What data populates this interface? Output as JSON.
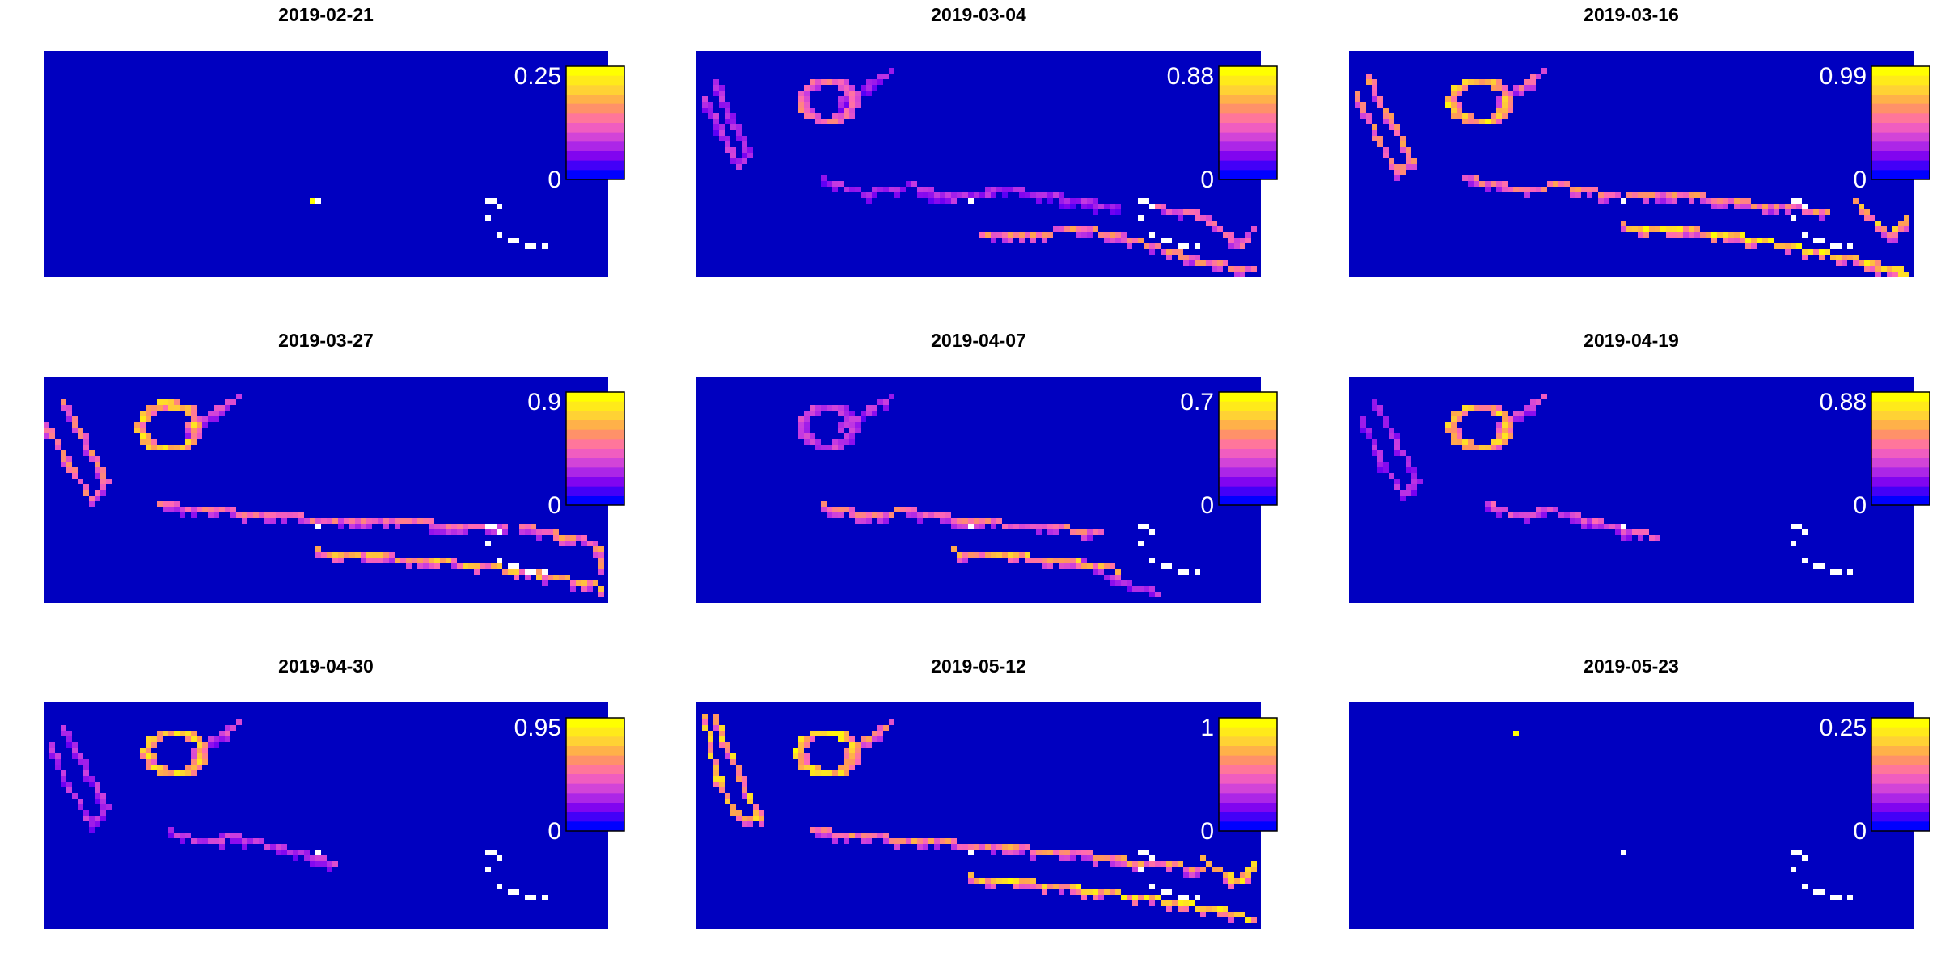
{
  "figure": {
    "background_color": "#ffffff",
    "map_background_color": "#0000c0"
  },
  "colormap": {
    "name": "blue-purple-pink-yellow",
    "stops": [
      "#0000ff",
      "#7a00f2",
      "#c83ce0",
      "#ff69b4",
      "#ff9a58",
      "#ffd830",
      "#ffff00"
    ],
    "missing_color": "#ffffff"
  },
  "chart_data": [
    {
      "type": "heatmap",
      "title": "2019-02-21",
      "legend": {
        "min_label": "0",
        "max_label": "0.25",
        "min": 0,
        "max": 0.25,
        "placement": "top-right"
      },
      "features": [
        {
          "kind": "point",
          "x": 0.478,
          "y": 0.66,
          "value": 0.25
        }
      ]
    },
    {
      "type": "heatmap",
      "title": "2019-03-04",
      "legend": {
        "min_label": "0",
        "max_label": "0.88",
        "min": 0,
        "max": 0.88,
        "placement": "top-right"
      },
      "features": [
        {
          "kind": "line",
          "points": [
            [
              0.01,
              0.2
            ],
            [
              0.04,
              0.35
            ],
            [
              0.07,
              0.5
            ],
            [
              0.09,
              0.45
            ],
            [
              0.06,
              0.3
            ],
            [
              0.03,
              0.12
            ]
          ],
          "value": 0.32
        },
        {
          "kind": "ellipse",
          "cx": 0.225,
          "cy": 0.21,
          "rx": 0.045,
          "ry": 0.085,
          "value": 0.55
        },
        {
          "kind": "line",
          "points": [
            [
              0.25,
              0.22
            ],
            [
              0.34,
              0.08
            ]
          ],
          "value": 0.3
        },
        {
          "kind": "line",
          "points": [
            [
              0.22,
              0.56
            ],
            [
              0.3,
              0.62
            ],
            [
              0.38,
              0.58
            ],
            [
              0.45,
              0.64
            ],
            [
              0.55,
              0.6
            ],
            [
              0.65,
              0.64
            ],
            [
              0.75,
              0.68
            ]
          ],
          "value": 0.3
        },
        {
          "kind": "line",
          "points": [
            [
              0.5,
              0.8
            ],
            [
              0.6,
              0.79
            ],
            [
              0.7,
              0.78
            ],
            [
              0.8,
              0.84
            ],
            [
              0.9,
              0.92
            ],
            [
              1.0,
              0.96
            ]
          ],
          "value": 0.62
        },
        {
          "kind": "line",
          "points": [
            [
              0.82,
              0.68
            ],
            [
              0.9,
              0.72
            ],
            [
              0.97,
              0.85
            ],
            [
              1.0,
              0.74
            ]
          ],
          "value": 0.5
        }
      ]
    },
    {
      "type": "heatmap",
      "title": "2019-03-16",
      "legend": {
        "min_label": "0",
        "max_label": "0.99",
        "min": 0,
        "max": 0.99,
        "placement": "top-right"
      },
      "features": [
        {
          "kind": "line",
          "points": [
            [
              0.01,
              0.18
            ],
            [
              0.04,
              0.35
            ],
            [
              0.08,
              0.53
            ],
            [
              0.11,
              0.47
            ],
            [
              0.07,
              0.3
            ],
            [
              0.03,
              0.1
            ]
          ],
          "value": 0.7
        },
        {
          "kind": "ellipse",
          "cx": 0.225,
          "cy": 0.21,
          "rx": 0.05,
          "ry": 0.09,
          "value": 0.95
        },
        {
          "kind": "line",
          "points": [
            [
              0.26,
              0.22
            ],
            [
              0.34,
              0.08
            ]
          ],
          "value": 0.6
        },
        {
          "kind": "line",
          "points": [
            [
              0.2,
              0.55
            ],
            [
              0.3,
              0.6
            ],
            [
              0.38,
              0.58
            ],
            [
              0.48,
              0.64
            ],
            [
              0.58,
              0.62
            ],
            [
              0.7,
              0.66
            ],
            [
              0.85,
              0.7
            ]
          ],
          "value": 0.7
        },
        {
          "kind": "line",
          "points": [
            [
              0.48,
              0.76
            ],
            [
              0.6,
              0.78
            ],
            [
              0.72,
              0.82
            ],
            [
              0.84,
              0.88
            ],
            [
              0.92,
              0.92
            ],
            [
              1.0,
              0.98
            ]
          ],
          "value": 0.99
        },
        {
          "kind": "line",
          "points": [
            [
              0.9,
              0.66
            ],
            [
              0.96,
              0.8
            ],
            [
              1.0,
              0.72
            ]
          ],
          "value": 0.85
        }
      ]
    },
    {
      "type": "heatmap",
      "title": "2019-03-27",
      "legend": {
        "min_label": "0",
        "max_label": "0.9",
        "min": 0,
        "max": 0.9,
        "placement": "top-right"
      },
      "features": [
        {
          "kind": "line",
          "points": [
            [
              0.0,
              0.2
            ],
            [
              0.04,
              0.38
            ],
            [
              0.08,
              0.52
            ],
            [
              0.11,
              0.46
            ],
            [
              0.07,
              0.28
            ],
            [
              0.03,
              0.1
            ]
          ],
          "value": 0.6
        },
        {
          "kind": "ellipse",
          "cx": 0.215,
          "cy": 0.21,
          "rx": 0.05,
          "ry": 0.1,
          "value": 0.85
        },
        {
          "kind": "line",
          "points": [
            [
              0.25,
              0.22
            ],
            [
              0.34,
              0.08
            ]
          ],
          "value": 0.5
        },
        {
          "kind": "line",
          "points": [
            [
              0.2,
              0.55
            ],
            [
              0.3,
              0.58
            ],
            [
              0.4,
              0.6
            ],
            [
              0.5,
              0.62
            ],
            [
              0.6,
              0.62
            ],
            [
              0.7,
              0.64
            ],
            [
              0.82,
              0.66
            ]
          ],
          "value": 0.55
        },
        {
          "kind": "line",
          "points": [
            [
              0.48,
              0.76
            ],
            [
              0.58,
              0.78
            ],
            [
              0.7,
              0.8
            ],
            [
              0.82,
              0.84
            ],
            [
              0.92,
              0.88
            ],
            [
              1.0,
              0.92
            ]
          ],
          "value": 0.75
        },
        {
          "kind": "line",
          "points": [
            [
              0.85,
              0.64
            ],
            [
              0.92,
              0.7
            ],
            [
              0.98,
              0.72
            ],
            [
              1.0,
              0.85
            ]
          ],
          "value": 0.65
        }
      ]
    },
    {
      "type": "heatmap",
      "title": "2019-04-07",
      "legend": {
        "min_label": "0",
        "max_label": "0.7",
        "min": 0,
        "max": 0.7,
        "placement": "top-right"
      },
      "features": [
        {
          "kind": "ellipse",
          "cx": 0.225,
          "cy": 0.21,
          "rx": 0.045,
          "ry": 0.085,
          "value": 0.3
        },
        {
          "kind": "line",
          "points": [
            [
              0.25,
              0.22
            ],
            [
              0.34,
              0.08
            ]
          ],
          "value": 0.25
        },
        {
          "kind": "line",
          "points": [
            [
              0.22,
              0.56
            ],
            [
              0.3,
              0.6
            ],
            [
              0.38,
              0.58
            ],
            [
              0.46,
              0.62
            ],
            [
              0.55,
              0.64
            ],
            [
              0.65,
              0.66
            ],
            [
              0.72,
              0.68
            ]
          ],
          "value": 0.45
        },
        {
          "kind": "line",
          "points": [
            [
              0.45,
              0.76
            ],
            [
              0.55,
              0.78
            ],
            [
              0.65,
              0.8
            ],
            [
              0.75,
              0.84
            ]
          ],
          "value": 0.6
        },
        {
          "kind": "line",
          "points": [
            [
              0.68,
              0.8
            ],
            [
              0.75,
              0.9
            ],
            [
              0.82,
              0.94
            ]
          ],
          "value": 0.3
        }
      ]
    },
    {
      "type": "heatmap",
      "title": "2019-04-19",
      "legend": {
        "min_label": "0",
        "max_label": "0.88",
        "min": 0,
        "max": 0.88,
        "placement": "top-right"
      },
      "features": [
        {
          "kind": "line",
          "points": [
            [
              0.02,
              0.18
            ],
            [
              0.05,
              0.35
            ],
            [
              0.09,
              0.5
            ],
            [
              0.12,
              0.45
            ],
            [
              0.08,
              0.28
            ],
            [
              0.04,
              0.1
            ]
          ],
          "value": 0.3
        },
        {
          "kind": "ellipse",
          "cx": 0.225,
          "cy": 0.21,
          "rx": 0.05,
          "ry": 0.09,
          "value": 0.8
        },
        {
          "kind": "line",
          "points": [
            [
              0.26,
              0.22
            ],
            [
              0.34,
              0.08
            ]
          ],
          "value": 0.45
        },
        {
          "kind": "line",
          "points": [
            [
              0.24,
              0.55
            ],
            [
              0.3,
              0.6
            ],
            [
              0.36,
              0.58
            ],
            [
              0.42,
              0.62
            ],
            [
              0.48,
              0.66
            ],
            [
              0.55,
              0.7
            ]
          ],
          "value": 0.45
        }
      ]
    },
    {
      "type": "heatmap",
      "title": "2019-04-30",
      "legend": {
        "min_label": "0",
        "max_label": "0.95",
        "min": 0,
        "max": 0.95,
        "placement": "top-right"
      },
      "features": [
        {
          "kind": "line",
          "points": [
            [
              0.01,
              0.18
            ],
            [
              0.04,
              0.36
            ],
            [
              0.08,
              0.52
            ],
            [
              0.11,
              0.46
            ],
            [
              0.07,
              0.28
            ],
            [
              0.03,
              0.1
            ]
          ],
          "value": 0.35
        },
        {
          "kind": "ellipse",
          "cx": 0.225,
          "cy": 0.21,
          "rx": 0.05,
          "ry": 0.09,
          "value": 0.9
        },
        {
          "kind": "line",
          "points": [
            [
              0.26,
              0.22
            ],
            [
              0.34,
              0.08
            ]
          ],
          "value": 0.45
        },
        {
          "kind": "line",
          "points": [
            [
              0.22,
              0.56
            ],
            [
              0.28,
              0.6
            ],
            [
              0.34,
              0.58
            ],
            [
              0.4,
              0.62
            ],
            [
              0.46,
              0.66
            ],
            [
              0.52,
              0.7
            ]
          ],
          "value": 0.4
        }
      ]
    },
    {
      "type": "heatmap",
      "title": "2019-05-12",
      "legend": {
        "min_label": "0",
        "max_label": "1",
        "min": 0,
        "max": 1,
        "placement": "top-right"
      },
      "features": [
        {
          "kind": "line",
          "points": [
            [
              0.01,
              0.05
            ],
            [
              0.03,
              0.3
            ],
            [
              0.07,
              0.5
            ],
            [
              0.11,
              0.5
            ],
            [
              0.07,
              0.3
            ],
            [
              0.03,
              0.05
            ]
          ],
          "value": 0.9
        },
        {
          "kind": "ellipse",
          "cx": 0.225,
          "cy": 0.21,
          "rx": 0.05,
          "ry": 0.09,
          "value": 1.0
        },
        {
          "kind": "line",
          "points": [
            [
              0.26,
              0.22
            ],
            [
              0.34,
              0.08
            ]
          ],
          "value": 0.7
        },
        {
          "kind": "line",
          "points": [
            [
              0.2,
              0.55
            ],
            [
              0.3,
              0.58
            ],
            [
              0.4,
              0.6
            ],
            [
              0.5,
              0.62
            ],
            [
              0.6,
              0.64
            ],
            [
              0.7,
              0.66
            ],
            [
              0.8,
              0.7
            ],
            [
              0.9,
              0.72
            ]
          ],
          "value": 0.75
        },
        {
          "kind": "line",
          "points": [
            [
              0.48,
              0.76
            ],
            [
              0.58,
              0.78
            ],
            [
              0.7,
              0.82
            ],
            [
              0.82,
              0.86
            ],
            [
              0.92,
              0.9
            ],
            [
              1.0,
              0.96
            ]
          ],
          "value": 1.0
        },
        {
          "kind": "line",
          "points": [
            [
              0.9,
              0.68
            ],
            [
              0.96,
              0.78
            ],
            [
              1.0,
              0.7
            ]
          ],
          "value": 0.95
        }
      ]
    },
    {
      "type": "heatmap",
      "title": "2019-05-23",
      "legend": {
        "min_label": "0",
        "max_label": "0.25",
        "min": 0,
        "max": 0.25,
        "placement": "top-right"
      },
      "features": [
        {
          "kind": "point",
          "x": 0.29,
          "y": 0.12,
          "value": 0.25
        }
      ]
    }
  ]
}
